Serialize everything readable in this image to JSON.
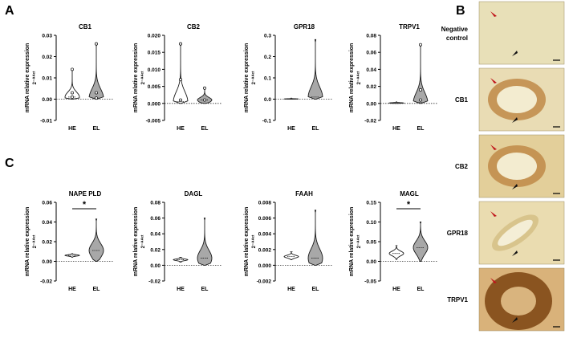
{
  "panel_labels": {
    "a": "A",
    "b": "B",
    "c": "C"
  },
  "ylabel_line1": "mRNA relative expression",
  "ylabel_line2": "2⁻ᐞᐞᶜᵗ",
  "colors": {
    "violin_stroke": "#1a1a1a",
    "violin_fill_he": "#ffffff",
    "violin_fill_el": "#a8a8a8",
    "dotted": "#333333"
  },
  "chart_data": [
    {
      "type": "violin",
      "title": "CB1",
      "categories": [
        "HE",
        "EL"
      ],
      "ylim": [
        -0.01,
        0.03
      ],
      "yticks": [
        "-0.01",
        "0.00",
        "0.01",
        "0.02",
        "0.03"
      ],
      "ytick_values": [
        -0.01,
        0,
        0.01,
        0.02,
        0.03
      ],
      "series": [
        {
          "category": "HE",
          "min": 0.0,
          "max": 0.014,
          "median": 0.001,
          "points": [
            0.014,
            0.003,
            0.001
          ]
        },
        {
          "category": "EL",
          "min": 0.0,
          "max": 0.026,
          "median": 0.0005,
          "points": [
            0.026,
            0.003,
            0.0005
          ]
        }
      ],
      "significance": null
    },
    {
      "type": "violin",
      "title": "CB2",
      "categories": [
        "HE",
        "EL"
      ],
      "ylim": [
        -0.005,
        0.02
      ],
      "yticks": [
        "-0.005",
        "0.000",
        "0.005",
        "0.010",
        "0.015",
        "0.020"
      ],
      "ytick_values": [
        -0.005,
        0,
        0.005,
        0.01,
        0.015,
        0.02
      ],
      "series": [
        {
          "category": "HE",
          "min": 0.0,
          "max": 0.0175,
          "median": 0.0005,
          "points": [
            0.0175,
            0.007,
            0.001
          ]
        },
        {
          "category": "EL",
          "min": 0.0,
          "max": 0.0045,
          "median": 0.001,
          "points": [
            0.0045,
            0.001
          ]
        }
      ],
      "significance": null
    },
    {
      "type": "violin",
      "title": "GPR18",
      "categories": [
        "HE",
        "EL"
      ],
      "ylim": [
        -0.1,
        0.3
      ],
      "yticks": [
        "-0.1",
        "0.0",
        "0.1",
        "0.2",
        "0.3"
      ],
      "ytick_values": [
        -0.1,
        0,
        0.1,
        0.2,
        0.3
      ],
      "series": [
        {
          "category": "HE",
          "min": 0.0,
          "max": 0.005,
          "median": 0.001,
          "points": []
        },
        {
          "category": "EL",
          "min": 0.0,
          "max": 0.28,
          "median": 0.01,
          "points": []
        }
      ],
      "significance": null
    },
    {
      "type": "violin",
      "title": "TRPV1",
      "categories": [
        "HE",
        "EL"
      ],
      "ylim": [
        -0.02,
        0.08
      ],
      "yticks": [
        "-0.02",
        "0.00",
        "0.02",
        "0.04",
        "0.06",
        "0.08"
      ],
      "ytick_values": [
        -0.02,
        0,
        0.02,
        0.04,
        0.06,
        0.08
      ],
      "series": [
        {
          "category": "HE",
          "min": 0.0,
          "max": 0.002,
          "median": 0.0005,
          "points": []
        },
        {
          "category": "EL",
          "min": 0.0,
          "max": 0.069,
          "median": 0.001,
          "points": [
            0.069,
            0.016,
            0.004
          ]
        }
      ],
      "significance": null
    },
    {
      "type": "violin",
      "title": "NAPE PLD",
      "categories": [
        "HE",
        "EL"
      ],
      "ylim": [
        -0.02,
        0.06
      ],
      "yticks": [
        "-0.02",
        "0.00",
        "0.02",
        "0.04",
        "0.06"
      ],
      "ytick_values": [
        -0.02,
        0,
        0.02,
        0.04,
        0.06
      ],
      "series": [
        {
          "category": "HE",
          "min": 0.004,
          "max": 0.008,
          "median": 0.006,
          "points": []
        },
        {
          "category": "EL",
          "min": 0.0,
          "max": 0.043,
          "median": 0.011,
          "points": []
        }
      ],
      "significance": "*"
    },
    {
      "type": "violin",
      "title": "DAGL",
      "categories": [
        "HE",
        "EL"
      ],
      "ylim": [
        -0.02,
        0.08
      ],
      "yticks": [
        "-0.02",
        "0.00",
        "0.02",
        "0.04",
        "0.06",
        "0.08"
      ],
      "ytick_values": [
        -0.02,
        0,
        0.02,
        0.04,
        0.06,
        0.08
      ],
      "series": [
        {
          "category": "HE",
          "min": 0.004,
          "max": 0.01,
          "median": 0.007,
          "points": []
        },
        {
          "category": "EL",
          "min": 0.0,
          "max": 0.06,
          "median": 0.009,
          "points": []
        }
      ],
      "significance": null
    },
    {
      "type": "violin",
      "title": "FAAH",
      "categories": [
        "HE",
        "EL"
      ],
      "ylim": [
        -0.002,
        0.008
      ],
      "yticks": [
        "-0.002",
        "0.000",
        "0.002",
        "0.004",
        "0.006",
        "0.008"
      ],
      "ytick_values": [
        -0.002,
        0,
        0.002,
        0.004,
        0.006,
        0.008
      ],
      "series": [
        {
          "category": "HE",
          "min": 0.0007,
          "max": 0.0017,
          "median": 0.0011,
          "points": []
        },
        {
          "category": "EL",
          "min": 0.0,
          "max": 0.007,
          "median": 0.0009,
          "points": []
        }
      ],
      "significance": null
    },
    {
      "type": "violin",
      "title": "MAGL",
      "categories": [
        "HE",
        "EL"
      ],
      "ylim": [
        -0.05,
        0.15
      ],
      "yticks": [
        "-0.05",
        "0.00",
        "0.05",
        "0.10",
        "0.15"
      ],
      "ytick_values": [
        -0.05,
        0,
        0.05,
        0.1,
        0.15
      ],
      "series": [
        {
          "category": "HE",
          "min": 0.005,
          "max": 0.04,
          "median": 0.02,
          "points": []
        },
        {
          "category": "EL",
          "min": 0.0,
          "max": 0.1,
          "median": 0.035,
          "points": []
        }
      ],
      "significance": "*"
    }
  ],
  "micrographs": [
    {
      "label": "Negative control",
      "bg": "#e8e0b8",
      "stain": "none"
    },
    {
      "label": "CB1",
      "bg": "#e9dcb4",
      "stain": "ring"
    },
    {
      "label": "CB2",
      "bg": "#e3cf9a",
      "stain": "ring"
    },
    {
      "label": "GPR18",
      "bg": "#eadcb0",
      "stain": "faint"
    },
    {
      "label": "TRPV1",
      "bg": "#d9b27a",
      "stain": "strong"
    }
  ]
}
